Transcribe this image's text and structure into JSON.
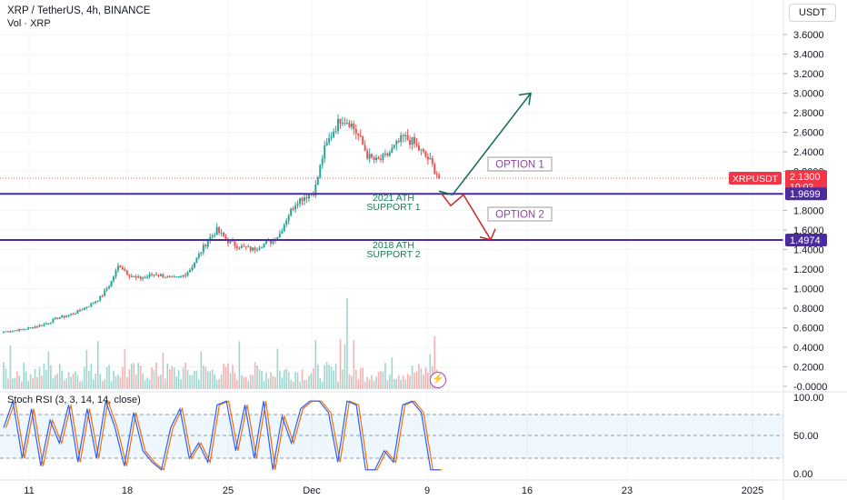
{
  "header": {
    "symbol_line": "XRP / TetherUS, 4h, BINANCE",
    "volume_line": "Vol · XRP",
    "currency_button": "USDT"
  },
  "stoch": {
    "label": "Stoch RSI (3, 3, 14, 14, close)",
    "ticks": [
      "100.00",
      "50.00",
      "0.00"
    ]
  },
  "price_tag": {
    "symbol": "XRPUSDT",
    "price": "2.1300",
    "countdown": "10:02",
    "color": "#f23645"
  },
  "level_tags": [
    "1.9699",
    "1.4974"
  ],
  "annotations": {
    "option1": "OPTION 1",
    "option2": "OPTION 2",
    "support1_l1": "2021 ATH",
    "support1_l2": "SUPPORT 1",
    "support2_l1": "2018 ATH",
    "support2_l2": "SUPPORT 2"
  },
  "colors": {
    "up": "#26a69a",
    "down": "#ef5350",
    "level_line": "#4a2c9f",
    "option1_arrow": "#0e6b57",
    "option2_arrow": "#c62828",
    "stoch_k": "#2962ff",
    "stoch_d": "#ff6d00"
  },
  "chart_data": {
    "type": "candlestick",
    "y_ticks": [
      "3.6000",
      "3.4000",
      "3.2000",
      "3.0000",
      "2.8000",
      "2.6000",
      "2.4000",
      "2.2000",
      "1.8000",
      "1.6000",
      "1.4000",
      "1.2000",
      "1.0000",
      "0.8000",
      "0.6000",
      "0.4000",
      "0.2000",
      "-0.0000"
    ],
    "x_ticks": [
      "11",
      "18",
      "25",
      "Dec",
      "9",
      "16",
      "23",
      "2025"
    ],
    "ylim": [
      0,
      3.7
    ],
    "levels": [
      {
        "name": "2021 ATH SUPPORT 1",
        "value": 1.9699
      },
      {
        "name": "2018 ATH SUPPORT 2",
        "value": 1.4974
      }
    ],
    "last_price": 2.13,
    "projection_option1": {
      "from": 1.97,
      "to": 3.0
    },
    "projection_option2": {
      "from": 1.97,
      "to": 1.5
    },
    "price_path": [
      0.56,
      0.57,
      0.58,
      0.6,
      0.62,
      0.65,
      0.7,
      0.72,
      0.75,
      0.8,
      0.85,
      0.92,
      1.05,
      1.25,
      1.15,
      1.1,
      1.12,
      1.15,
      1.13,
      1.1,
      1.12,
      1.2,
      1.35,
      1.5,
      1.6,
      1.5,
      1.45,
      1.42,
      1.4,
      1.45,
      1.48,
      1.55,
      1.75,
      1.9,
      1.95,
      2.0,
      2.4,
      2.6,
      2.75,
      2.7,
      2.55,
      2.35,
      2.3,
      2.35,
      2.45,
      2.55,
      2.5,
      2.4,
      2.3,
      2.13
    ],
    "stoch_k": [
      60,
      95,
      20,
      85,
      10,
      70,
      40,
      90,
      15,
      85,
      20,
      95,
      60,
      10,
      80,
      30,
      15,
      5,
      60,
      85,
      20,
      40,
      15,
      90,
      95,
      30,
      90,
      20,
      95,
      5,
      75,
      40,
      85,
      95,
      95,
      80,
      15,
      95,
      90,
      5,
      5,
      30,
      15,
      90,
      95,
      80,
      5,
      5
    ]
  }
}
